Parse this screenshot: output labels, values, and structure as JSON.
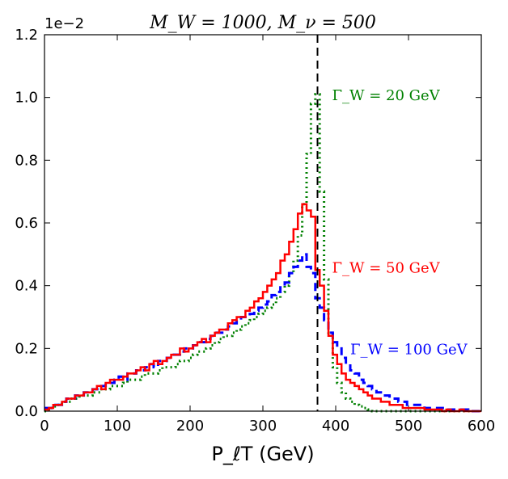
{
  "chart_data": {
    "type": "line",
    "title": "M_W = 1000, M_ν = 500",
    "xlabel": "P_ℓT (GeV)",
    "ylabel": "",
    "y_offset_label": "1e−2",
    "xlim": [
      0,
      600
    ],
    "ylim": [
      0,
      1.2
    ],
    "x_ticks": [
      0,
      100,
      200,
      300,
      400,
      500,
      600
    ],
    "x_tick_labels": [
      "0",
      "100",
      "200",
      "300",
      "400",
      "500",
      "600"
    ],
    "y_ticks": [
      0.0,
      0.2,
      0.4,
      0.6,
      0.8,
      1.0,
      1.2
    ],
    "y_tick_labels": [
      "0.0",
      "0.2",
      "0.4",
      "0.6",
      "0.8",
      "1.0",
      "1.2"
    ],
    "bin_width": 6,
    "vertical_line": {
      "x": 375,
      "style": "dashed",
      "color": "#000000"
    },
    "series": [
      {
        "name": "Γ_W = 20 GeV",
        "color": "#008000",
        "style": "dotted",
        "bin_start": 0,
        "values": [
          0.0,
          0.01,
          0.015,
          0.02,
          0.03,
          0.03,
          0.04,
          0.04,
          0.05,
          0.05,
          0.05,
          0.06,
          0.06,
          0.07,
          0.07,
          0.08,
          0.08,
          0.08,
          0.09,
          0.1,
          0.1,
          0.1,
          0.11,
          0.12,
          0.12,
          0.12,
          0.13,
          0.14,
          0.14,
          0.14,
          0.15,
          0.16,
          0.16,
          0.17,
          0.18,
          0.19,
          0.19,
          0.2,
          0.21,
          0.22,
          0.23,
          0.24,
          0.24,
          0.25,
          0.26,
          0.27,
          0.28,
          0.29,
          0.3,
          0.31,
          0.32,
          0.33,
          0.34,
          0.36,
          0.38,
          0.4,
          0.44,
          0.48,
          0.56,
          0.66,
          0.82,
          0.98,
          1.01,
          0.7,
          0.42,
          0.25,
          0.14,
          0.09,
          0.06,
          0.04,
          0.03,
          0.02,
          0.015,
          0.01,
          0.005,
          0.0,
          0.0,
          0.0,
          0.0,
          0.0,
          0.0,
          0.0,
          0.0,
          0.0,
          0.0,
          0.0,
          0.0,
          0.0,
          0.0,
          0.0,
          0.0,
          0.0,
          0.0,
          0.0,
          0.0,
          0.0,
          0.0,
          0.0,
          0.0,
          0.0
        ]
      },
      {
        "name": "Γ_W = 50 GeV",
        "color": "#ff0000",
        "style": "solid",
        "bin_start": 0,
        "values": [
          0.005,
          0.01,
          0.02,
          0.02,
          0.03,
          0.04,
          0.04,
          0.05,
          0.05,
          0.06,
          0.06,
          0.07,
          0.08,
          0.07,
          0.09,
          0.1,
          0.1,
          0.1,
          0.11,
          0.12,
          0.12,
          0.13,
          0.14,
          0.13,
          0.15,
          0.16,
          0.15,
          0.16,
          0.17,
          0.18,
          0.18,
          0.2,
          0.19,
          0.2,
          0.21,
          0.22,
          0.23,
          0.22,
          0.24,
          0.25,
          0.26,
          0.26,
          0.28,
          0.29,
          0.3,
          0.3,
          0.32,
          0.33,
          0.35,
          0.36,
          0.38,
          0.4,
          0.42,
          0.44,
          0.48,
          0.5,
          0.54,
          0.58,
          0.63,
          0.66,
          0.64,
          0.62,
          0.45,
          0.4,
          0.32,
          0.24,
          0.18,
          0.15,
          0.12,
          0.1,
          0.09,
          0.08,
          0.07,
          0.06,
          0.05,
          0.04,
          0.04,
          0.03,
          0.03,
          0.02,
          0.02,
          0.02,
          0.01,
          0.01,
          0.01,
          0.01,
          0.01,
          0.005,
          0.005,
          0.005,
          0.005,
          0.0,
          0.005,
          0.0,
          0.0,
          0.005,
          0.0,
          0.0,
          0.0,
          0.0
        ]
      },
      {
        "name": "Γ_W = 100 GeV",
        "color": "#0000ff",
        "style": "dashed",
        "bin_start": 0,
        "values": [
          0.01,
          0.01,
          0.02,
          0.02,
          0.03,
          0.04,
          0.04,
          0.05,
          0.05,
          0.06,
          0.06,
          0.07,
          0.07,
          0.08,
          0.09,
          0.09,
          0.1,
          0.11,
          0.1,
          0.12,
          0.12,
          0.13,
          0.13,
          0.14,
          0.15,
          0.14,
          0.16,
          0.16,
          0.17,
          0.18,
          0.18,
          0.19,
          0.2,
          0.2,
          0.21,
          0.22,
          0.22,
          0.23,
          0.24,
          0.25,
          0.25,
          0.26,
          0.27,
          0.28,
          0.29,
          0.3,
          0.3,
          0.31,
          0.32,
          0.33,
          0.34,
          0.35,
          0.37,
          0.38,
          0.4,
          0.41,
          0.44,
          0.46,
          0.48,
          0.5,
          0.46,
          0.44,
          0.36,
          0.33,
          0.29,
          0.25,
          0.22,
          0.2,
          0.17,
          0.15,
          0.13,
          0.12,
          0.1,
          0.09,
          0.08,
          0.07,
          0.06,
          0.05,
          0.05,
          0.04,
          0.04,
          0.03,
          0.03,
          0.02,
          0.02,
          0.02,
          0.02,
          0.01,
          0.01,
          0.01,
          0.01,
          0.01,
          0.005,
          0.005,
          0.005,
          0.005,
          0.005,
          0.0,
          0.0,
          0.0
        ]
      }
    ],
    "annotations": [
      {
        "text": "Γ_W = 20 GeV",
        "series": 0,
        "x": 395,
        "y": 1.01
      },
      {
        "text": "Γ_W = 50 GeV",
        "series": 1,
        "x": 395,
        "y": 0.46
      },
      {
        "text": "Γ_W = 100 GeV",
        "series": 2,
        "x": 420,
        "y": 0.2
      }
    ]
  }
}
